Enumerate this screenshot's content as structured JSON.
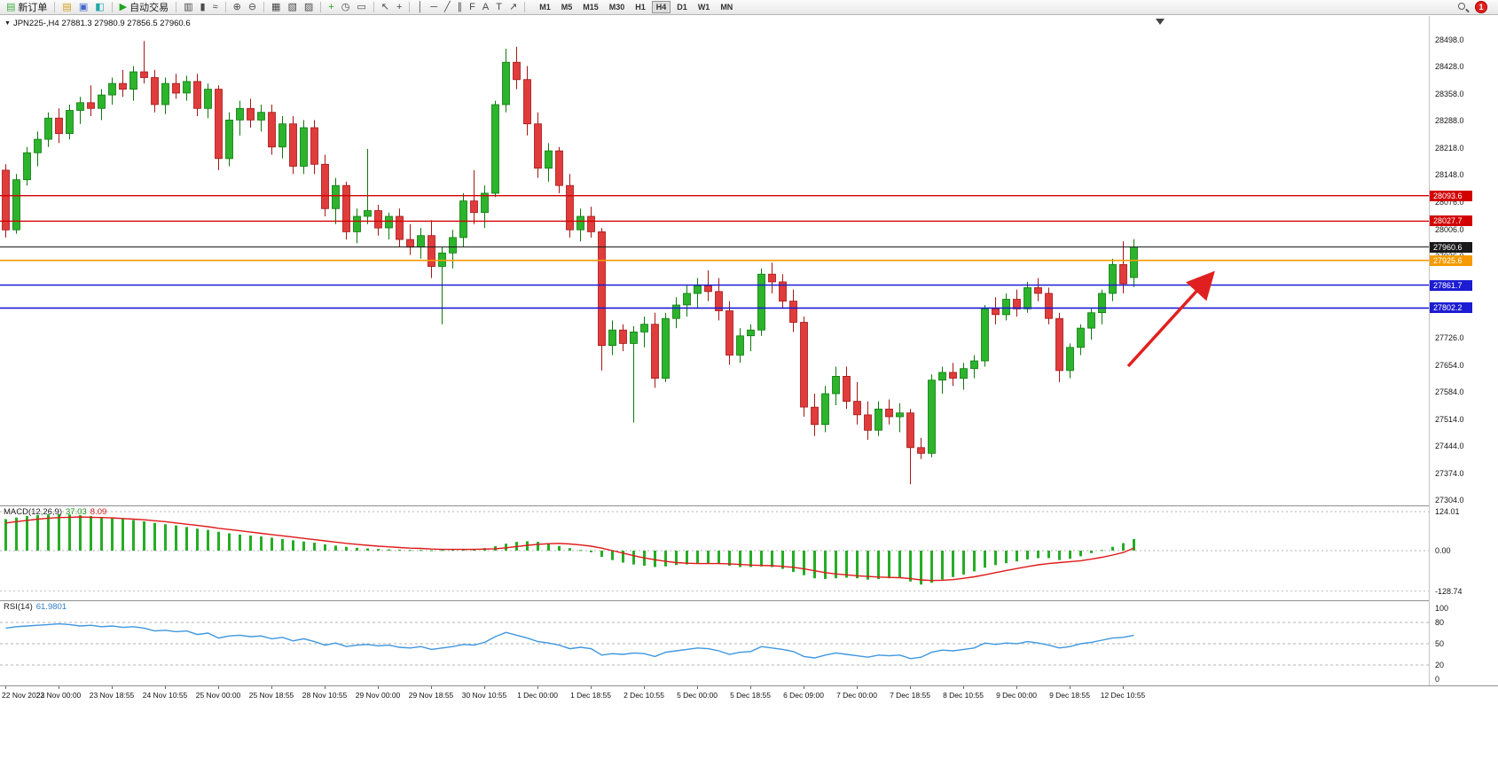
{
  "toolbar": {
    "new_order": "新订单",
    "autotrade": "自动交易",
    "timeframes": [
      "M1",
      "M5",
      "M15",
      "M30",
      "H1",
      "H4",
      "D1",
      "W1",
      "MN"
    ],
    "active_timeframe": "H4",
    "notification_count": "1",
    "items": [
      {
        "name": "new-order-button",
        "glyph": "▤",
        "color": "#3fae3f",
        "label": "新订单"
      },
      {
        "sep": true
      },
      {
        "name": "charts-icon",
        "glyph": "▤",
        "color": "#d4a017"
      },
      {
        "name": "profiles-icon",
        "glyph": "▣",
        "color": "#4466cc"
      },
      {
        "name": "navigator-icon",
        "glyph": "◧",
        "color": "#22a8a8"
      },
      {
        "sep": true
      },
      {
        "name": "autotrade-button",
        "glyph": "▶",
        "color": "#1ca41c",
        "label": "自动交易"
      },
      {
        "sep": true
      },
      {
        "name": "bar-chart-icon",
        "glyph": "▥"
      },
      {
        "name": "candlestick-chart-icon",
        "glyph": "▮"
      },
      {
        "name": "line-chart-icon",
        "glyph": "≈"
      },
      {
        "sep": true
      },
      {
        "name": "zoom-in-icon",
        "glyph": "⊕"
      },
      {
        "name": "zoom-out-icon",
        "glyph": "⊖"
      },
      {
        "sep": true
      },
      {
        "name": "tile-windows-icon",
        "glyph": "▦"
      },
      {
        "name": "cascade-windows-icon",
        "glyph": "▧"
      },
      {
        "name": "arrange-windows-icon",
        "glyph": "▨"
      },
      {
        "sep": true
      },
      {
        "name": "indicators-icon",
        "glyph": "+",
        "color": "#1ca41c"
      },
      {
        "name": "periods-icon",
        "glyph": "◷"
      },
      {
        "name": "templates-icon",
        "glyph": "▭"
      },
      {
        "sep": true
      },
      {
        "name": "cursor-icon",
        "glyph": "↖"
      },
      {
        "name": "crosshair-icon",
        "glyph": "+"
      },
      {
        "sep": true
      },
      {
        "name": "vertical-line-icon",
        "glyph": "│"
      },
      {
        "name": "horizontal-line-icon",
        "glyph": "─"
      },
      {
        "name": "trendline-icon",
        "glyph": "╱"
      },
      {
        "name": "channel-icon",
        "glyph": "∥"
      },
      {
        "name": "fibonacci-icon",
        "glyph": "F"
      },
      {
        "name": "text-icon",
        "glyph": "A"
      },
      {
        "name": "label-icon",
        "glyph": "T"
      },
      {
        "name": "arrow-tools-icon",
        "glyph": "↗"
      },
      {
        "sep": true
      }
    ]
  },
  "chart": {
    "title": "JPN225-,H4 27881.3 27980.9 27856.5 27960.6",
    "symbol": "JPN225-",
    "period": "H4",
    "hlines": [
      {
        "price": "28093.6",
        "color": "#d20000",
        "width": 1.4
      },
      {
        "price": "28027.7",
        "color": "#d20000",
        "width": 1.4
      },
      {
        "price": "27960.6",
        "color": "#1a1a1a",
        "width": 1.0
      },
      {
        "price": "27925.6",
        "color": "#f59a00",
        "width": 1.6
      },
      {
        "price": "27861.7",
        "color": "#1c1cd2",
        "width": 1.6
      },
      {
        "price": "27802.2",
        "color": "#1c1cd2",
        "width": 1.6
      }
    ],
    "price_axis_labels": [
      "28498.0",
      "28428.0",
      "28358.0",
      "28288.0",
      "28218.0",
      "28148.0",
      "28076.0",
      "28006.0",
      "27936.0",
      "27866.0",
      "27796.0",
      "27726.0",
      "27654.0",
      "27584.0",
      "27514.0",
      "27444.0",
      "27374.0",
      "27304.0"
    ]
  },
  "colors": {
    "bull": "#2cb42c",
    "bull_dark": "#0d7a0d",
    "bear": "#e03c3c",
    "bear_dark": "#a61616",
    "macd_hist": "#25ad25",
    "macd_signal": "#e01818",
    "rsi_line": "#3f97e0"
  },
  "annotations": {
    "arrow": {
      "color": "#e02020"
    }
  },
  "chart_data": {
    "type": "candlestick",
    "symbol": "JPN225-",
    "timeframe": "H4",
    "ohlc_current": {
      "open": 27881.3,
      "high": 27980.9,
      "low": 27856.5,
      "close": 27960.6
    },
    "price_range": [
      27304.0,
      28498.0
    ],
    "candles": [
      [
        28160,
        28175,
        27985,
        28005
      ],
      [
        28005,
        28150,
        27995,
        28135
      ],
      [
        28135,
        28220,
        28120,
        28205
      ],
      [
        28205,
        28260,
        28170,
        28240
      ],
      [
        28240,
        28310,
        28220,
        28295
      ],
      [
        28295,
        28320,
        28230,
        28255
      ],
      [
        28255,
        28330,
        28240,
        28315
      ],
      [
        28315,
        28350,
        28280,
        28335
      ],
      [
        28335,
        28380,
        28300,
        28320
      ],
      [
        28320,
        28370,
        28290,
        28355
      ],
      [
        28355,
        28400,
        28330,
        28385
      ],
      [
        28385,
        28420,
        28350,
        28370
      ],
      [
        28370,
        28430,
        28340,
        28415
      ],
      [
        28415,
        28495,
        28385,
        28400
      ],
      [
        28400,
        28420,
        28310,
        28330
      ],
      [
        28330,
        28400,
        28305,
        28385
      ],
      [
        28385,
        28410,
        28345,
        28360
      ],
      [
        28360,
        28405,
        28340,
        28390
      ],
      [
        28390,
        28410,
        28300,
        28320
      ],
      [
        28320,
        28385,
        28295,
        28370
      ],
      [
        28370,
        28380,
        28160,
        28190
      ],
      [
        28190,
        28310,
        28170,
        28290
      ],
      [
        28290,
        28340,
        28250,
        28320
      ],
      [
        28320,
        28345,
        28270,
        28290
      ],
      [
        28290,
        28330,
        28260,
        28310
      ],
      [
        28310,
        28330,
        28200,
        28220
      ],
      [
        28220,
        28300,
        28190,
        28280
      ],
      [
        28280,
        28300,
        28150,
        28170
      ],
      [
        28170,
        28290,
        28150,
        28270
      ],
      [
        28270,
        28290,
        28150,
        28175
      ],
      [
        28175,
        28200,
        28040,
        28060
      ],
      [
        28060,
        28140,
        28020,
        28120
      ],
      [
        28120,
        28130,
        27980,
        28000
      ],
      [
        28000,
        28060,
        27970,
        28040
      ],
      [
        28040,
        28215,
        28020,
        28055
      ],
      [
        28055,
        28070,
        27990,
        28010
      ],
      [
        28010,
        28050,
        27980,
        28040
      ],
      [
        28040,
        28060,
        27960,
        27980
      ],
      [
        27980,
        28020,
        27940,
        27960
      ],
      [
        27960,
        28010,
        27930,
        27990
      ],
      [
        27990,
        28030,
        27880,
        27910
      ],
      [
        27910,
        27960,
        27760,
        27945
      ],
      [
        27945,
        28005,
        27905,
        27985
      ],
      [
        27985,
        28100,
        27960,
        28080
      ],
      [
        28080,
        28160,
        28020,
        28050
      ],
      [
        28050,
        28120,
        28010,
        28100
      ],
      [
        28100,
        28340,
        28090,
        28330
      ],
      [
        28330,
        28475,
        28310,
        28440
      ],
      [
        28440,
        28480,
        28370,
        28395
      ],
      [
        28395,
        28430,
        28250,
        28280
      ],
      [
        28280,
        28310,
        28140,
        28165
      ],
      [
        28165,
        28230,
        28130,
        28210
      ],
      [
        28210,
        28220,
        28100,
        28120
      ],
      [
        28120,
        28150,
        27985,
        28005
      ],
      [
        28005,
        28060,
        27975,
        28040
      ],
      [
        28040,
        28065,
        27985,
        28000
      ],
      [
        28000,
        28010,
        27640,
        27705
      ],
      [
        27705,
        27770,
        27680,
        27745
      ],
      [
        27745,
        27760,
        27690,
        27710
      ],
      [
        27710,
        27755,
        27505,
        27740
      ],
      [
        27740,
        27780,
        27700,
        27760
      ],
      [
        27760,
        27790,
        27595,
        27620
      ],
      [
        27620,
        27790,
        27610,
        27775
      ],
      [
        27775,
        27830,
        27750,
        27810
      ],
      [
        27810,
        27860,
        27780,
        27840
      ],
      [
        27840,
        27880,
        27800,
        27860
      ],
      [
        27860,
        27900,
        27820,
        27845
      ],
      [
        27845,
        27880,
        27770,
        27795
      ],
      [
        27795,
        27820,
        27655,
        27680
      ],
      [
        27680,
        27750,
        27660,
        27730
      ],
      [
        27730,
        27760,
        27690,
        27745
      ],
      [
        27745,
        27905,
        27730,
        27890
      ],
      [
        27890,
        27920,
        27840,
        27870
      ],
      [
        27870,
        27890,
        27800,
        27820
      ],
      [
        27820,
        27850,
        27740,
        27765
      ],
      [
        27765,
        27780,
        27520,
        27545
      ],
      [
        27545,
        27580,
        27470,
        27500
      ],
      [
        27500,
        27600,
        27480,
        27580
      ],
      [
        27580,
        27650,
        27550,
        27625
      ],
      [
        27625,
        27650,
        27540,
        27560
      ],
      [
        27560,
        27610,
        27500,
        27525
      ],
      [
        27525,
        27560,
        27460,
        27485
      ],
      [
        27485,
        27560,
        27470,
        27540
      ],
      [
        27540,
        27565,
        27500,
        27520
      ],
      [
        27520,
        27555,
        27480,
        27530
      ],
      [
        27530,
        27540,
        27345,
        27440
      ],
      [
        27440,
        27465,
        27410,
        27425
      ],
      [
        27425,
        27630,
        27415,
        27615
      ],
      [
        27615,
        27650,
        27580,
        27635
      ],
      [
        27635,
        27660,
        27600,
        27620
      ],
      [
        27620,
        27660,
        27590,
        27645
      ],
      [
        27645,
        27680,
        27620,
        27665
      ],
      [
        27665,
        27810,
        27650,
        27800
      ],
      [
        27800,
        27830,
        27760,
        27785
      ],
      [
        27785,
        27840,
        27770,
        27825
      ],
      [
        27825,
        27850,
        27780,
        27800
      ],
      [
        27800,
        27870,
        27790,
        27855
      ],
      [
        27855,
        27880,
        27820,
        27840
      ],
      [
        27840,
        27855,
        27760,
        27775
      ],
      [
        27775,
        27790,
        27610,
        27640
      ],
      [
        27640,
        27710,
        27620,
        27700
      ],
      [
        27700,
        27760,
        27680,
        27750
      ],
      [
        27750,
        27800,
        27720,
        27790
      ],
      [
        27790,
        27850,
        27760,
        27840
      ],
      [
        27840,
        27930,
        27820,
        27915
      ],
      [
        27915,
        27975,
        27840,
        27865
      ],
      [
        27881.3,
        27980.9,
        27856.5,
        27960.6
      ]
    ],
    "time_labels": [
      "22 Nov 2022",
      "23 Nov 00:00",
      "23 Nov 18:55",
      "24 Nov 10:55",
      "25 Nov 00:00",
      "25 Nov 18:55",
      "28 Nov 10:55",
      "29 Nov 00:00",
      "29 Nov 18:55",
      "30 Nov 10:55",
      "1 Dec 00:00",
      "1 Dec 18:55",
      "2 Dec 10:55",
      "5 Dec 00:00",
      "5 Dec 18:55",
      "6 Dec 09:00",
      "7 Dec 00:00",
      "7 Dec 18:55",
      "8 Dec 10:55",
      "9 Dec 00:00",
      "9 Dec 18:55",
      "12 Dec 10:55"
    ],
    "macd": {
      "name": "MACD(12,26,9)",
      "main_value": "37.03",
      "signal_value": "8.09",
      "axis_labels": [
        "124.01",
        "0.00",
        "-128.74"
      ],
      "histogram": [
        100,
        105,
        110,
        113,
        115,
        116,
        115,
        113,
        110,
        107,
        104,
        100,
        97,
        93,
        88,
        84,
        80,
        75,
        70,
        66,
        60,
        55,
        51,
        48,
        45,
        41,
        37,
        33,
        29,
        25,
        20,
        16,
        12,
        9,
        7,
        5,
        4,
        3,
        2,
        2,
        1,
        2,
        3,
        5,
        6,
        8,
        14,
        22,
        28,
        30,
        28,
        22,
        15,
        8,
        2,
        -5,
        -20,
        -30,
        -38,
        -44,
        -48,
        -52,
        -50,
        -46,
        -44,
        -42,
        -40,
        -42,
        -48,
        -52,
        -52,
        -50,
        -52,
        -58,
        -68,
        -78,
        -88,
        -90,
        -88,
        -86,
        -88,
        -92,
        -90,
        -88,
        -86,
        -98,
        -108,
        -102,
        -92,
        -84,
        -76,
        -66,
        -54,
        -46,
        -40,
        -34,
        -28,
        -24,
        -24,
        -30,
        -26,
        -18,
        -8,
        2,
        12,
        24,
        37.03
      ],
      "signal": [
        88,
        92,
        96,
        100,
        103,
        105,
        106,
        107,
        106,
        105,
        104,
        102,
        100,
        98,
        95,
        92,
        88,
        84,
        80,
        76,
        71,
        67,
        63,
        59,
        55,
        51,
        47,
        43,
        39,
        35,
        31,
        27,
        23,
        20,
        17,
        14,
        12,
        10,
        8,
        7,
        5,
        4,
        4,
        4,
        4,
        5,
        6,
        9,
        13,
        17,
        20,
        22,
        23,
        21,
        18,
        14,
        8,
        0,
        -8,
        -16,
        -23,
        -29,
        -34,
        -38,
        -40,
        -41,
        -41,
        -41,
        -42,
        -44,
        -46,
        -47,
        -48,
        -50,
        -53,
        -58,
        -64,
        -70,
        -74,
        -77,
        -80,
        -82,
        -84,
        -85,
        -86,
        -89,
        -93,
        -95,
        -94,
        -92,
        -88,
        -83,
        -77,
        -70,
        -63,
        -57,
        -51,
        -45,
        -41,
        -38,
        -35,
        -32,
        -27,
        -21,
        -14,
        -6,
        8.09
      ]
    },
    "rsi": {
      "name": "RSI(14)",
      "value": "61.9801",
      "axis_labels": [
        "100",
        "80",
        "50",
        "20",
        "0"
      ],
      "levels": [
        80,
        50,
        20
      ],
      "values": [
        72,
        74,
        75,
        76,
        77,
        78,
        77,
        75,
        76,
        74,
        75,
        73,
        74,
        72,
        68,
        69,
        67,
        68,
        63,
        65,
        58,
        61,
        62,
        60,
        61,
        57,
        59,
        54,
        57,
        53,
        48,
        51,
        46,
        48,
        49,
        47,
        48,
        45,
        44,
        46,
        42,
        44,
        46,
        49,
        48,
        52,
        60,
        66,
        62,
        58,
        53,
        51,
        48,
        43,
        45,
        43,
        34,
        36,
        35,
        37,
        36,
        32,
        38,
        40,
        42,
        44,
        43,
        40,
        35,
        38,
        39,
        46,
        44,
        42,
        39,
        32,
        30,
        34,
        37,
        35,
        33,
        31,
        34,
        33,
        34,
        29,
        31,
        38,
        41,
        40,
        42,
        44,
        51,
        49,
        51,
        50,
        53,
        51,
        48,
        44,
        46,
        50,
        52,
        55,
        58,
        59,
        61.98
      ]
    }
  }
}
